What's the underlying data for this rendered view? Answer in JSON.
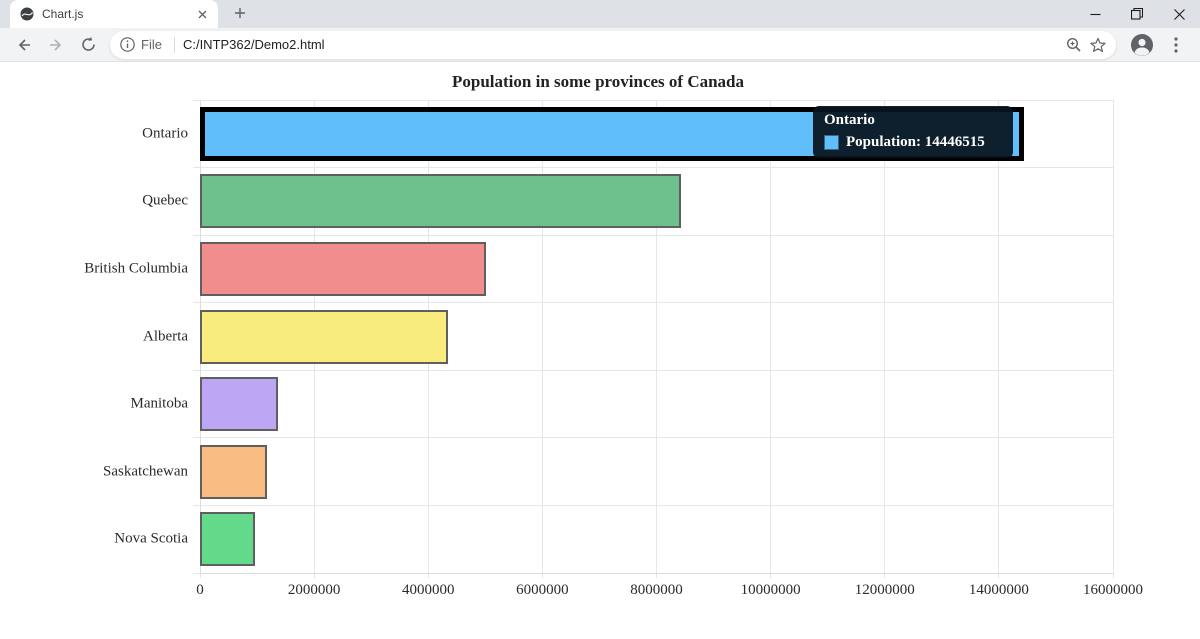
{
  "browser": {
    "tab_title": "Chart.js",
    "url_scheme_label": "File",
    "url": "C:/INTP362/Demo2.html",
    "icons": {
      "favicon": "chartjs-globe",
      "tab_close": "x",
      "new_tab": "plus",
      "minimize": "dash",
      "restore": "overlap-squares",
      "close": "x",
      "back": "arrow-left",
      "forward": "arrow-right",
      "reload": "refresh",
      "page_info": "info-circle",
      "zoom": "magnifier-plus",
      "bookmark": "star-outline",
      "profile": "avatar-person",
      "menu": "three-dots-vertical"
    }
  },
  "chart_data": {
    "type": "bar",
    "orientation": "horizontal",
    "title": "Population in some provinces of Canada",
    "categories": [
      "Ontario",
      "Quebec",
      "British Columbia",
      "Alberta",
      "Manitoba",
      "Saskatchewan",
      "Nova Scotia"
    ],
    "series": [
      {
        "name": "Population",
        "values": [
          14446515,
          8433301,
          5020302,
          4345737,
          1360396,
          1168423,
          965382
        ]
      }
    ],
    "bar_colors": [
      "#60bffa",
      "#6ec08d",
      "#f28d8d",
      "#f8ec7e",
      "#bda6f3",
      "#f9bd84",
      "#63d98a"
    ],
    "bar_border_color": "#5f5f5f",
    "highlight_border_color": "#000000",
    "highlighted_index": 0,
    "xlabel": "",
    "ylabel": "",
    "xlim": [
      0,
      16000000
    ],
    "x_ticks": [
      0,
      2000000,
      4000000,
      6000000,
      8000000,
      10000000,
      12000000,
      14000000,
      16000000
    ],
    "x_tick_labels": [
      "0",
      "2000000",
      "4000000",
      "6000000",
      "8000000",
      "10000000",
      "12000000",
      "14000000",
      "16000000"
    ],
    "grid": true,
    "legend": "hidden"
  },
  "tooltip": {
    "title": "Ontario",
    "label": "Population: 14446515",
    "colorbox_color": "#60bffa",
    "background": "rgba(8,19,30,0.93)"
  },
  "colors": {
    "grid": "#e6e6e6",
    "tabstrip_bg": "#dee1e6",
    "toolbar_bg": "#f1f3f4",
    "chrome_icon": "#5f6368"
  }
}
